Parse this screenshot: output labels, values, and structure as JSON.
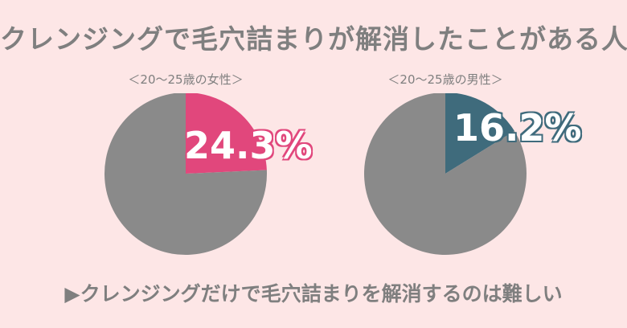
{
  "header": {
    "title": "クレンジングで毛穴詰まりが解消したことがある人"
  },
  "footer": {
    "text": "▶クレンジングだけで毛穴詰まりを解消するのは難しい"
  },
  "colors": {
    "background": "#fde6e6",
    "rest": "#8a8a8a",
    "women": "#e1477c",
    "men": "#3f6b7c",
    "text": "#7f7f7f"
  },
  "chart_data": [
    {
      "type": "pie",
      "title": "＜20〜25歳の女性＞",
      "labels": [
        "",
        ""
      ],
      "values": [
        24.3,
        75.7
      ],
      "display_label": "24.3%",
      "colors": [
        "#e1477c",
        "#8a8a8a"
      ]
    },
    {
      "type": "pie",
      "title": "＜20〜25歳の男性＞",
      "labels": [
        "",
        ""
      ],
      "values": [
        16.2,
        83.8
      ],
      "display_label": "16.2%",
      "colors": [
        "#3f6b7c",
        "#8a8a8a"
      ]
    }
  ]
}
